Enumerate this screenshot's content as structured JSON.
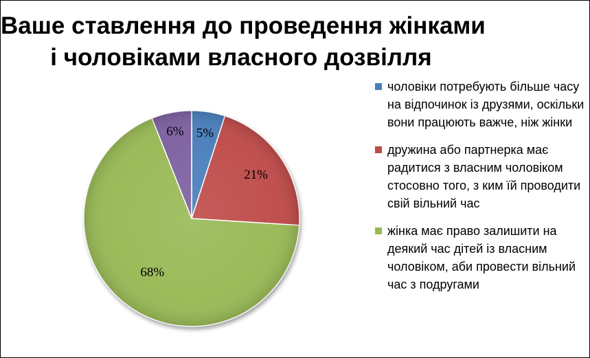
{
  "chart_data": {
    "type": "pie",
    "title_lines": [
      "Ваше ставлення до проведення жінками",
      "і чоловіками власного дозвілля"
    ],
    "slices": [
      {
        "label": "чоловіки потребують більше часу на відпочинок із друзями, оскільки вони працюють важче, ніж жінки",
        "value": 5,
        "value_label": "5%",
        "color": "#4a7ebb",
        "in_legend": true
      },
      {
        "label": "дружина або партнерка має радитися з власним чоловіком стосовно того, з ким їй проводити свій вільний час",
        "value": 21,
        "value_label": "21%",
        "color": "#be4b48",
        "in_legend": true
      },
      {
        "label": "жінка має право залишити на деякий час дітей із власним чоловіком, аби провести вільний час з подругами",
        "value": 68,
        "value_label": "68%",
        "color": "#98b954",
        "in_legend": true
      },
      {
        "label": "",
        "value": 6,
        "value_label": "6%",
        "color": "#7d60a0",
        "in_legend": false
      }
    ],
    "start_angle": "12 o'clock",
    "direction": "clockwise",
    "legend_position": "right"
  }
}
